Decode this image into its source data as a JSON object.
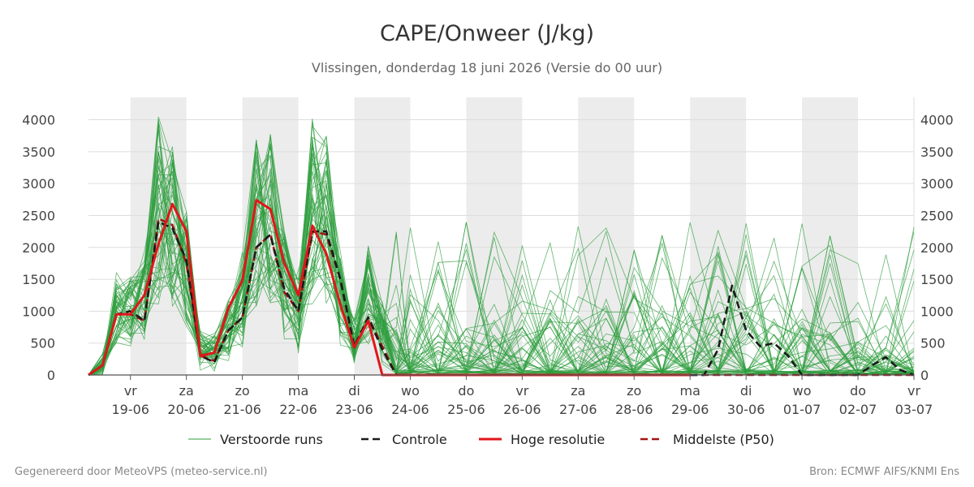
{
  "chart_data": {
    "type": "line",
    "title": "CAPE/Onweer (J/kg)",
    "subtitle": "Vlissingen, donderdag 18 juni 2026 (Versie do 00 uur)",
    "ylim": [
      0,
      4350
    ],
    "xlim": [
      -0.75,
      14.0
    ],
    "yticks": [
      0,
      500,
      1000,
      1500,
      2000,
      2500,
      3000,
      3500,
      4000
    ],
    "grid": true,
    "legend_position": "bottom",
    "x_ticks": [
      {
        "day": "vr",
        "date": "19-06"
      },
      {
        "day": "za",
        "date": "20-06"
      },
      {
        "day": "zo",
        "date": "21-06"
      },
      {
        "day": "ma",
        "date": "22-06"
      },
      {
        "day": "di",
        "date": "23-06"
      },
      {
        "day": "wo",
        "date": "24-06"
      },
      {
        "day": "do",
        "date": "25-06"
      },
      {
        "day": "vr",
        "date": "26-06"
      },
      {
        "day": "za",
        "date": "27-06"
      },
      {
        "day": "zo",
        "date": "28-06"
      },
      {
        "day": "ma",
        "date": "29-06"
      },
      {
        "day": "di",
        "date": "30-06"
      },
      {
        "day": "wo",
        "date": "01-07"
      },
      {
        "day": "do",
        "date": "02-07"
      },
      {
        "day": "vr",
        "date": "03-07"
      }
    ],
    "day_shading": [
      [
        0,
        1
      ],
      [
        2,
        3
      ],
      [
        4,
        5
      ],
      [
        6,
        7
      ],
      [
        8,
        9
      ],
      [
        10,
        11
      ],
      [
        12,
        13
      ]
    ],
    "ensemble": {
      "name": "Verstoorde runs",
      "color": "#2e9e3e",
      "member_count": 50,
      "x": [
        -0.75,
        -0.5,
        -0.25,
        0,
        0.25,
        0.5,
        0.75,
        1,
        1.25,
        1.5,
        1.75,
        2,
        2.25,
        2.5,
        2.75,
        3,
        3.25,
        3.5,
        3.75,
        4,
        4.25,
        4.5,
        4.75,
        5,
        5.5,
        6,
        6.5,
        7,
        7.5,
        8,
        8.5,
        9,
        9.5,
        10,
        10.5,
        11,
        11.5,
        12,
        12.5,
        13,
        13.5,
        14
      ],
      "base": [
        0,
        150,
        950,
        950,
        1200,
        2600,
        2300,
        1600,
        400,
        350,
        700,
        1200,
        2400,
        2500,
        1500,
        1000,
        2600,
        2400,
        1200,
        500,
        1300,
        700,
        350,
        200,
        300,
        350,
        400,
        400,
        450,
        500,
        550,
        600,
        550,
        500,
        550,
        500,
        400,
        350,
        300,
        250,
        200,
        200
      ]
    },
    "series": [
      {
        "name": "Controle",
        "color": "#1a1a1a",
        "style": "dashed",
        "x": [
          -0.75,
          -0.5,
          -0.25,
          0,
          0.25,
          0.5,
          0.75,
          1,
          1.25,
          1.5,
          1.75,
          2,
          2.25,
          2.5,
          2.75,
          3,
          3.25,
          3.5,
          3.75,
          4,
          4.25,
          4.5,
          4.75,
          5,
          5.5,
          6,
          6.5,
          7,
          7.5,
          8,
          8.5,
          9,
          9.5,
          10,
          10.25,
          10.5,
          10.75,
          11,
          11.25,
          11.5,
          11.75,
          12,
          12.5,
          13,
          13.25,
          13.5,
          13.75,
          14
        ],
        "values": [
          0,
          150,
          950,
          1000,
          850,
          2400,
          2300,
          1800,
          300,
          200,
          700,
          900,
          2000,
          2200,
          1350,
          1000,
          2250,
          2250,
          1500,
          450,
          900,
          400,
          0,
          0,
          0,
          0,
          0,
          0,
          0,
          0,
          0,
          0,
          0,
          0,
          0,
          400,
          1400,
          700,
          450,
          500,
          300,
          0,
          0,
          0,
          150,
          280,
          80,
          0
        ]
      },
      {
        "name": "Hoge resolutie",
        "color": "#e0161a",
        "style": "solid",
        "x": [
          -0.75,
          -0.5,
          -0.25,
          0,
          0.25,
          0.5,
          0.75,
          1,
          1.25,
          1.5,
          1.75,
          2,
          2.25,
          2.5,
          2.75,
          3,
          3.25,
          3.5,
          3.75,
          4,
          4.25,
          4.5,
          4.75,
          5,
          6,
          7,
          8,
          9,
          10
        ],
        "values": [
          0,
          150,
          950,
          950,
          1250,
          2050,
          2680,
          2250,
          300,
          350,
          1050,
          1480,
          2740,
          2600,
          1750,
          1250,
          2340,
          1900,
          1100,
          430,
          850,
          0,
          0,
          0,
          0,
          0,
          0,
          0,
          0
        ]
      },
      {
        "name": "Middelste (P50)",
        "color": "#a31513",
        "style": "dashed",
        "x": [
          -0.75,
          -0.5,
          -0.25,
          0,
          0.25,
          0.5,
          0.75,
          1,
          1.25,
          1.5,
          1.75,
          2,
          2.25,
          2.5,
          2.75,
          3,
          3.25,
          3.5,
          3.75,
          4,
          4.25,
          4.5,
          4.75,
          5,
          6,
          7,
          8,
          9,
          10,
          11,
          12,
          13,
          14
        ],
        "values": [
          0,
          150,
          950,
          950,
          850,
          2450,
          2350,
          1750,
          300,
          220,
          700,
          900,
          2000,
          2200,
          1300,
          1000,
          2250,
          2200,
          1500,
          450,
          900,
          450,
          0,
          0,
          0,
          0,
          0,
          0,
          0,
          0,
          0,
          0,
          0
        ]
      }
    ],
    "legend": [
      "Verstoorde runs",
      "Controle",
      "Hoge resolutie",
      "Middelste (P50)"
    ]
  },
  "footer": {
    "left": "Gegenereerd door MeteoVPS (meteo-service.nl)",
    "right": "Bron: ECMWF AIFS/KNMI Ens"
  }
}
